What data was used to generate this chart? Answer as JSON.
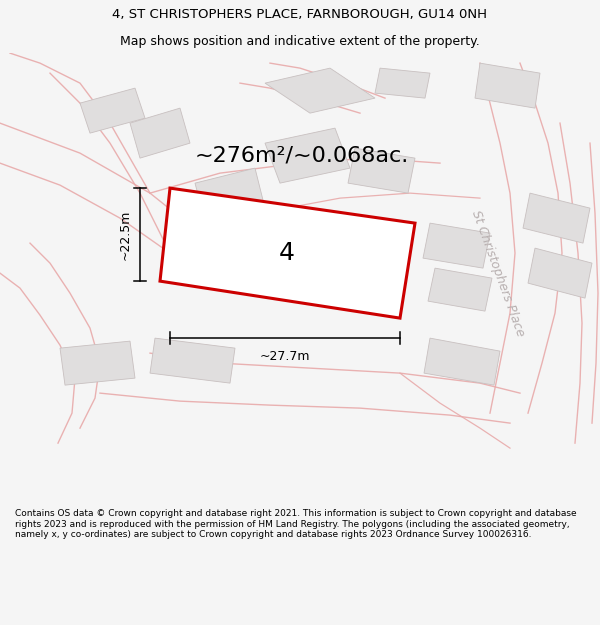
{
  "title_line1": "4, ST CHRISTOPHERS PLACE, FARNBOROUGH, GU14 0NH",
  "title_line2": "Map shows position and indicative extent of the property.",
  "area_text": "~276m²/~0.068ac.",
  "label_number": "4",
  "dim_width": "~27.7m",
  "dim_height": "~22.5m",
  "street_label": "St Christophers Place",
  "footer_text": "Contains OS data © Crown copyright and database right 2021. This information is subject to Crown copyright and database rights 2023 and is reproduced with the permission of HM Land Registry. The polygons (including the associated geometry, namely x, y co-ordinates) are subject to Crown copyright and database rights 2023 Ordnance Survey 100026316.",
  "bg_color": "#f5f5f5",
  "map_bg": "#f5f5f5",
  "plot_polygon_color": "#cc0000",
  "building_fill": "#e0dede",
  "building_edge": "#c8c0c0",
  "road_color": "#e8aaaa",
  "dim_color": "#000000",
  "text_color": "#000000",
  "gray_text_color": "#b8b0b0",
  "title_fontsize": 9.5,
  "subtitle_fontsize": 9.0,
  "area_fontsize": 16,
  "number_fontsize": 18,
  "street_fontsize": 9,
  "dim_fontsize": 9,
  "footer_fontsize": 6.5
}
